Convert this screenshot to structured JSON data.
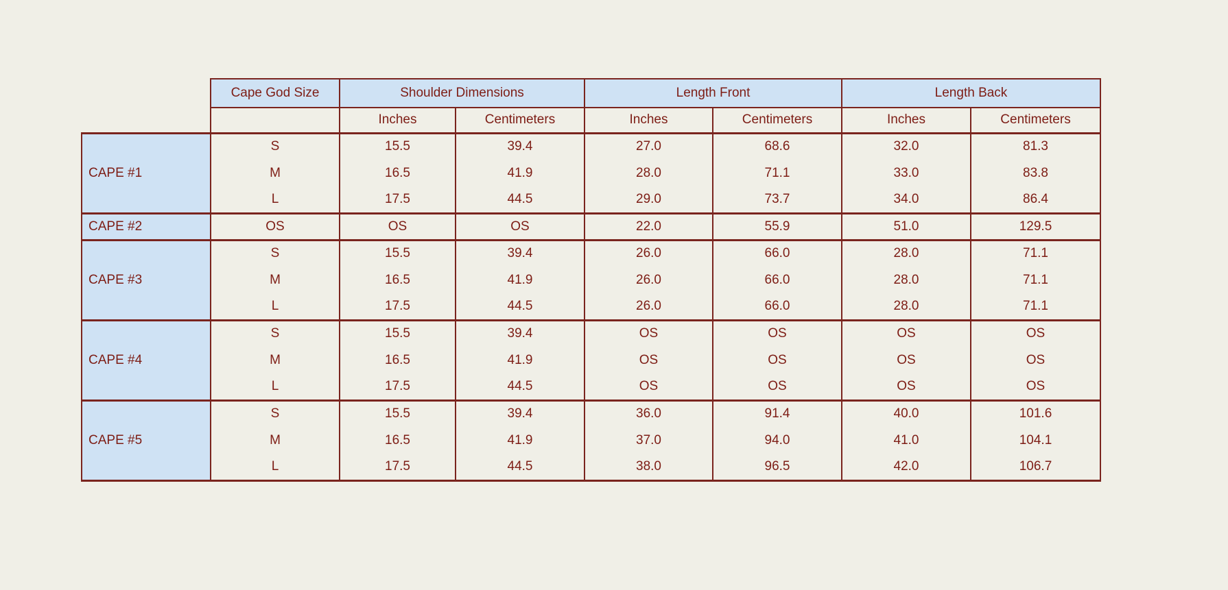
{
  "colors": {
    "page_background": "#f0efe7",
    "header_fill": "#cfe2f4",
    "text": "#7d1d15",
    "border": "#7a241e"
  },
  "table": {
    "header": {
      "size_column": "Cape God Size",
      "groups": [
        "Shoulder Dimensions",
        "Length Front",
        "Length Back"
      ],
      "units": [
        "Inches",
        "Centimeters",
        "Inches",
        "Centimeters",
        "Inches",
        "Centimeters"
      ]
    },
    "groups": [
      {
        "name": "CAPE #1",
        "rows": [
          {
            "size": "S",
            "values": [
              "15.5",
              "39.4",
              "27.0",
              "68.6",
              "32.0",
              "81.3"
            ]
          },
          {
            "size": "M",
            "values": [
              "16.5",
              "41.9",
              "28.0",
              "71.1",
              "33.0",
              "83.8"
            ]
          },
          {
            "size": "L",
            "values": [
              "17.5",
              "44.5",
              "29.0",
              "73.7",
              "34.0",
              "86.4"
            ]
          }
        ]
      },
      {
        "name": "CAPE #2",
        "rows": [
          {
            "size": "OS",
            "values": [
              "OS",
              "OS",
              "22.0",
              "55.9",
              "51.0",
              "129.5"
            ]
          }
        ]
      },
      {
        "name": "CAPE #3",
        "rows": [
          {
            "size": "S",
            "values": [
              "15.5",
              "39.4",
              "26.0",
              "66.0",
              "28.0",
              "71.1"
            ]
          },
          {
            "size": "M",
            "values": [
              "16.5",
              "41.9",
              "26.0",
              "66.0",
              "28.0",
              "71.1"
            ]
          },
          {
            "size": "L",
            "values": [
              "17.5",
              "44.5",
              "26.0",
              "66.0",
              "28.0",
              "71.1"
            ]
          }
        ]
      },
      {
        "name": "CAPE #4",
        "rows": [
          {
            "size": "S",
            "values": [
              "15.5",
              "39.4",
              "OS",
              "OS",
              "OS",
              "OS"
            ]
          },
          {
            "size": "M",
            "values": [
              "16.5",
              "41.9",
              "OS",
              "OS",
              "OS",
              "OS"
            ]
          },
          {
            "size": "L",
            "values": [
              "17.5",
              "44.5",
              "OS",
              "OS",
              "OS",
              "OS"
            ]
          }
        ]
      },
      {
        "name": "CAPE #5",
        "rows": [
          {
            "size": "S",
            "values": [
              "15.5",
              "39.4",
              "36.0",
              "91.4",
              "40.0",
              "101.6"
            ]
          },
          {
            "size": "M",
            "values": [
              "16.5",
              "41.9",
              "37.0",
              "94.0",
              "41.0",
              "104.1"
            ]
          },
          {
            "size": "L",
            "values": [
              "17.5",
              "44.5",
              "38.0",
              "96.5",
              "42.0",
              "106.7"
            ]
          }
        ]
      }
    ]
  }
}
